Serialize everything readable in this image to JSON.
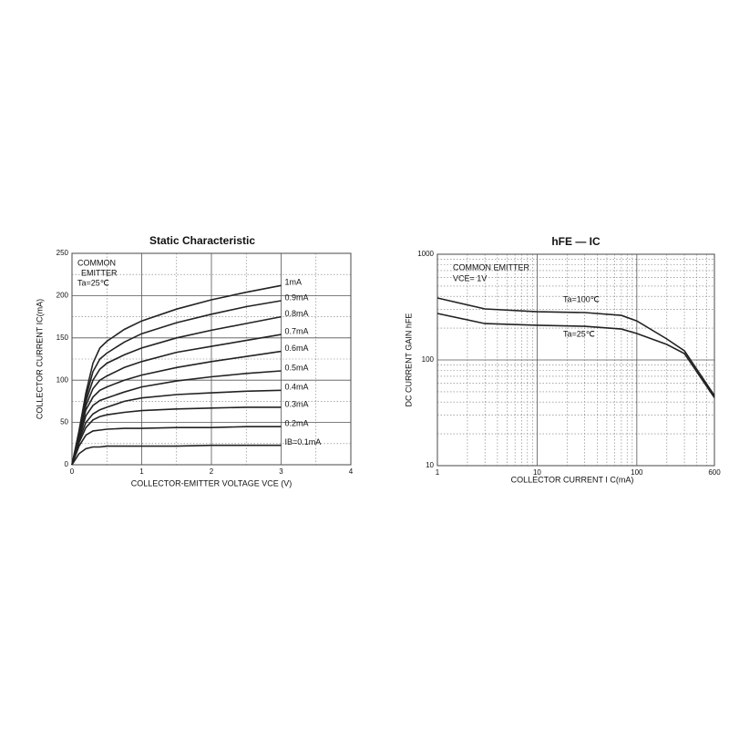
{
  "chart_data": [
    {
      "type": "line",
      "title": "Static Characteristic",
      "xlabel": "COLLECTOR-EMITTER VOLTAGE  VCE  (V)",
      "ylabel": "COLLECTOR CURRENT   IC(mA)",
      "annotations": [
        "COMMON",
        "EMITTER",
        "Ta=25℃"
      ],
      "xlim": [
        0,
        4
      ],
      "xticks": [
        0,
        1,
        2,
        3,
        4
      ],
      "ylim": [
        0,
        250
      ],
      "yticks": [
        0,
        50,
        100,
        150,
        200,
        250
      ],
      "grid": true,
      "x": [
        0,
        0.1,
        0.2,
        0.3,
        0.4,
        0.5,
        0.75,
        1,
        1.5,
        2,
        2.5,
        3
      ],
      "series": [
        {
          "name": "1mA",
          "color": "#222222",
          "values": [
            0,
            40,
            85,
            120,
            138,
            146,
            160,
            170,
            184,
            195,
            204,
            212
          ]
        },
        {
          "name": "0.9mA",
          "color": "#222222",
          "values": [
            0,
            38,
            80,
            110,
            125,
            132,
            145,
            155,
            168,
            178,
            187,
            194
          ]
        },
        {
          "name": "0.8mA",
          "color": "#222222",
          "values": [
            0,
            36,
            75,
            100,
            113,
            120,
            130,
            138,
            150,
            159,
            167,
            175
          ]
        },
        {
          "name": "0.7mA",
          "color": "#222222",
          "values": [
            0,
            35,
            70,
            90,
            100,
            105,
            115,
            122,
            133,
            140,
            147,
            154
          ]
        },
        {
          "name": "0.6mA",
          "color": "#222222",
          "values": [
            0,
            33,
            65,
            80,
            88,
            92,
            100,
            106,
            115,
            122,
            128,
            134
          ]
        },
        {
          "name": "0.5mA",
          "color": "#222222",
          "values": [
            0,
            31,
            58,
            70,
            76,
            79,
            86,
            92,
            99,
            104,
            108,
            111
          ]
        },
        {
          "name": "0.4mA",
          "color": "#222222",
          "values": [
            0,
            29,
            50,
            60,
            65,
            68,
            75,
            79,
            83,
            85,
            87,
            88
          ]
        },
        {
          "name": "0.3mA",
          "color": "#222222",
          "values": [
            0,
            26,
            44,
            53,
            57,
            59,
            62,
            64,
            66,
            67,
            68,
            68
          ]
        },
        {
          "name": "0.2mA",
          "color": "#222222",
          "values": [
            0,
            22,
            35,
            40,
            41,
            42,
            43,
            43,
            44,
            44,
            45,
            45
          ]
        },
        {
          "name": "IB=0.1mA",
          "color": "#222222",
          "values": [
            0,
            13,
            19,
            21,
            21,
            22,
            22,
            22,
            22,
            23,
            23,
            23
          ]
        }
      ]
    },
    {
      "type": "line",
      "title": "hFE — IC",
      "log_x": true,
      "log_y": true,
      "xlabel": "COLLECTOR CURRENT I C(mA)",
      "ylabel": "DC CURRENT GAIN   hFE",
      "annotations": [
        "COMMON EMITTER",
        "VCE= 1V"
      ],
      "xlim": [
        1,
        600
      ],
      "xticks": [
        1,
        10,
        100,
        600
      ],
      "ylim": [
        10,
        1000
      ],
      "yticks": [
        10,
        100,
        1000
      ],
      "grid": true,
      "x": [
        1,
        3,
        10,
        30,
        70,
        100,
        200,
        300,
        600
      ],
      "series": [
        {
          "name": "Ta=100℃",
          "color": "#222222",
          "values": [
            386,
            304,
            286,
            281,
            264,
            234,
            158,
            122,
            46
          ]
        },
        {
          "name": "Ta=25℃",
          "color": "#222222",
          "values": [
            275,
            221,
            213,
            208,
            196,
            178,
            140,
            115,
            44
          ]
        }
      ]
    }
  ]
}
